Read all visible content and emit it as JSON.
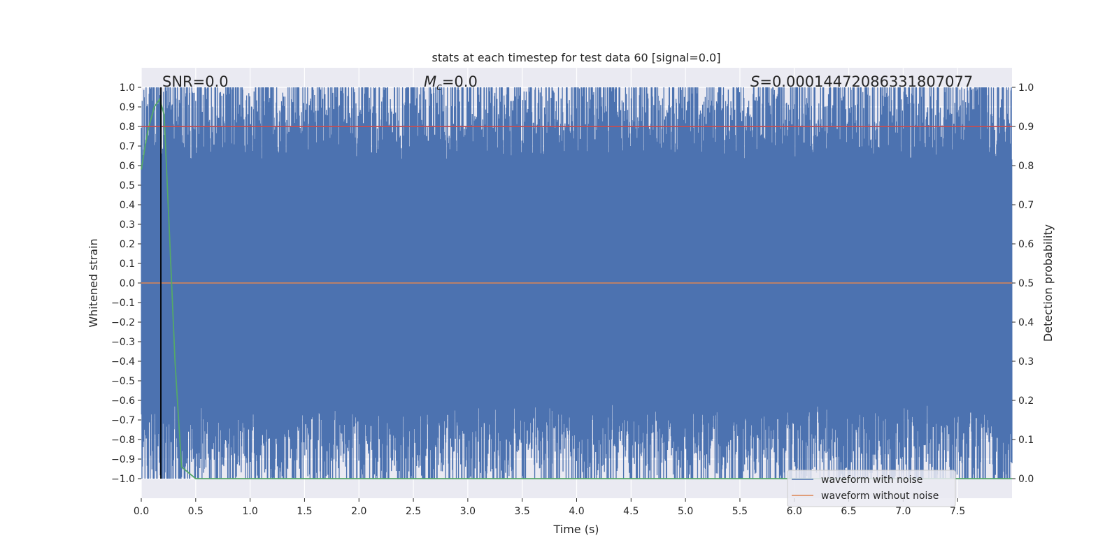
{
  "chart_data": {
    "type": "line",
    "title": "stats at each timestep for test data 60 [signal=0.0]",
    "xlabel": "Time (s)",
    "ylabel_left": "Whitened strain",
    "ylabel_right": "Detection probability",
    "xlim": [
      0.0,
      8.0
    ],
    "ylim_left": [
      -1.1,
      1.1
    ],
    "ylim_right": [
      -0.05,
      1.05
    ],
    "x_ticks": [
      "0.0",
      "0.5",
      "1.0",
      "1.5",
      "2.0",
      "2.5",
      "3.0",
      "3.5",
      "4.0",
      "4.5",
      "5.0",
      "5.5",
      "6.0",
      "6.5",
      "7.0",
      "7.5"
    ],
    "y_ticks_left": [
      "1.0",
      "0.9",
      "0.8",
      "0.7",
      "0.6",
      "0.5",
      "0.4",
      "0.3",
      "0.2",
      "0.1",
      "0.0",
      "−0.1",
      "−0.2",
      "−0.3",
      "−0.4",
      "−0.5",
      "−0.6",
      "−0.7",
      "−0.8",
      "−0.9",
      "−1.0"
    ],
    "y_ticks_right": [
      "1.0",
      "0.9",
      "0.8",
      "0.7",
      "0.6",
      "0.5",
      "0.4",
      "0.3",
      "0.2",
      "0.1",
      "0.0"
    ],
    "grid": true,
    "legend_placement": "lower-right",
    "annotations": {
      "snr": "SNR=0.0",
      "mc_symbol": "M",
      "mc_sub": "c",
      "mc_value": "=0.0",
      "s_symbol": "S",
      "s_value": "=0.0001447208633180707​7"
    },
    "series": [
      {
        "name": "waveform with noise",
        "axis": "left",
        "color": "#4c72b0",
        "style": "dense noise spanning -1.0 to 1.0",
        "x_range": [
          0.0,
          8.0
        ],
        "y_range": [
          -1.0,
          1.0
        ]
      },
      {
        "name": "waveform without noise",
        "axis": "left",
        "color": "#dd8452",
        "x": [
          0.0,
          8.0
        ],
        "y": [
          0.0,
          0.0
        ]
      },
      {
        "axis": "right",
        "color": "#55a868",
        "x": [
          0.0,
          0.06,
          0.12,
          0.17,
          0.21,
          0.26,
          0.31,
          0.37,
          0.5,
          1.0,
          2.0,
          4.0,
          6.0,
          8.0
        ],
        "y": [
          0.79,
          0.89,
          0.95,
          0.97,
          0.93,
          0.62,
          0.3,
          0.03,
          0.0,
          0.0,
          0.0,
          0.0,
          0.0,
          0.0
        ]
      },
      {
        "axis": "right",
        "color": "#c44e52",
        "x": [
          0.0,
          8.0
        ],
        "y": [
          0.9,
          0.9
        ]
      }
    ],
    "event_marker_x": 0.18,
    "event_marker_color": "#000000"
  }
}
